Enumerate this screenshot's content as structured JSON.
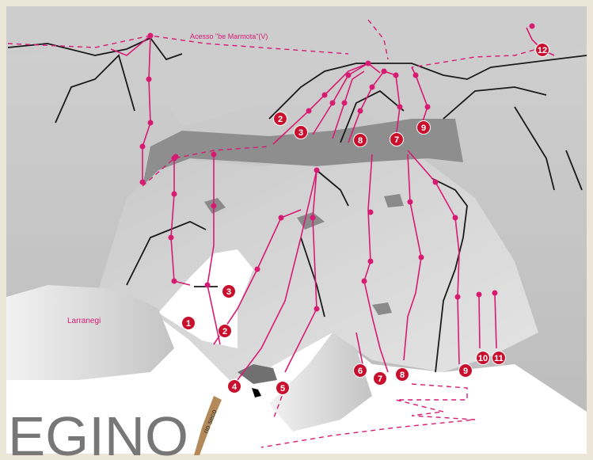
{
  "header": {
    "title": "EGINO"
  },
  "labels": {
    "access": "Acesso \"be Marmota\"(V)",
    "area": "Larranegi",
    "stream": "rio seco"
  },
  "routes": [
    {
      "label": "2"
    },
    {
      "label": "3"
    },
    {
      "label": "8"
    },
    {
      "label": "7"
    },
    {
      "label": "9"
    },
    {
      "label": "12"
    },
    {
      "label": "3"
    },
    {
      "label": "1"
    },
    {
      "label": "2"
    },
    {
      "label": "4"
    },
    {
      "label": "5"
    },
    {
      "label": "6"
    },
    {
      "label": "7"
    },
    {
      "label": "8"
    },
    {
      "label": "9"
    },
    {
      "label": "10"
    },
    {
      "label": "11"
    }
  ]
}
